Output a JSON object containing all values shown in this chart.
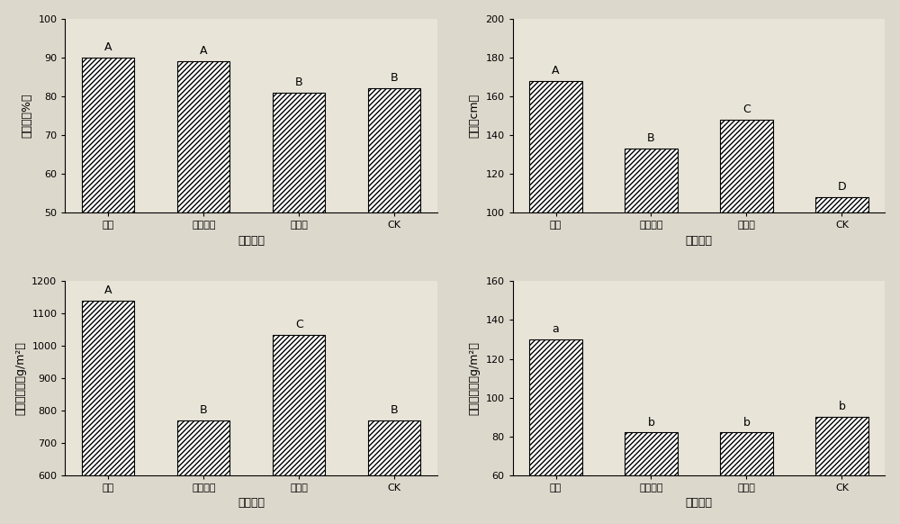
{
  "categories": [
    "菌肘",
    "空白载体",
    "无机肘",
    "CK"
  ],
  "subplot1": {
    "values": [
      90,
      89,
      81,
      82
    ],
    "labels": [
      "A",
      "A",
      "B",
      "B"
    ],
    "ylabel": "成活率（%）",
    "xlabel": "肘料类型",
    "ylim": [
      50,
      100
    ],
    "yticks": [
      50,
      60,
      70,
      80,
      90,
      100
    ]
  },
  "subplot2": {
    "values": [
      168,
      133,
      148,
      108
    ],
    "labels": [
      "A",
      "B",
      "C",
      "D"
    ],
    "ylabel": "高度（cm）",
    "xlabel": "肘料类型",
    "ylim": [
      100,
      200
    ],
    "yticks": [
      100,
      120,
      140,
      160,
      180,
      200
    ]
  },
  "subplot3": {
    "values": [
      1140,
      770,
      1035,
      770
    ],
    "labels": [
      "A",
      "B",
      "C",
      "B"
    ],
    "ylabel": "地上生物量（g/m²）",
    "xlabel": "肘料类型",
    "ylim": [
      600,
      1200
    ],
    "yticks": [
      600,
      700,
      800,
      900,
      1000,
      1100,
      1200
    ]
  },
  "subplot4": {
    "values": [
      130,
      82,
      82,
      90
    ],
    "labels": [
      "a",
      "b",
      "b",
      "b"
    ],
    "ylabel": "根系生物量（g/m²）",
    "xlabel": "肘料类型",
    "ylim": [
      60,
      160
    ],
    "yticks": [
      60,
      80,
      100,
      120,
      140,
      160
    ]
  },
  "bar_color": "#e8e4d8",
  "hatch": "xxxx",
  "bar_width": 0.55,
  "label_fontsize": 9,
  "tick_fontsize": 8,
  "axis_label_fontsize": 9,
  "bg_color": "#e8e4d8",
  "fig_bg_color": "#ddd8cc"
}
